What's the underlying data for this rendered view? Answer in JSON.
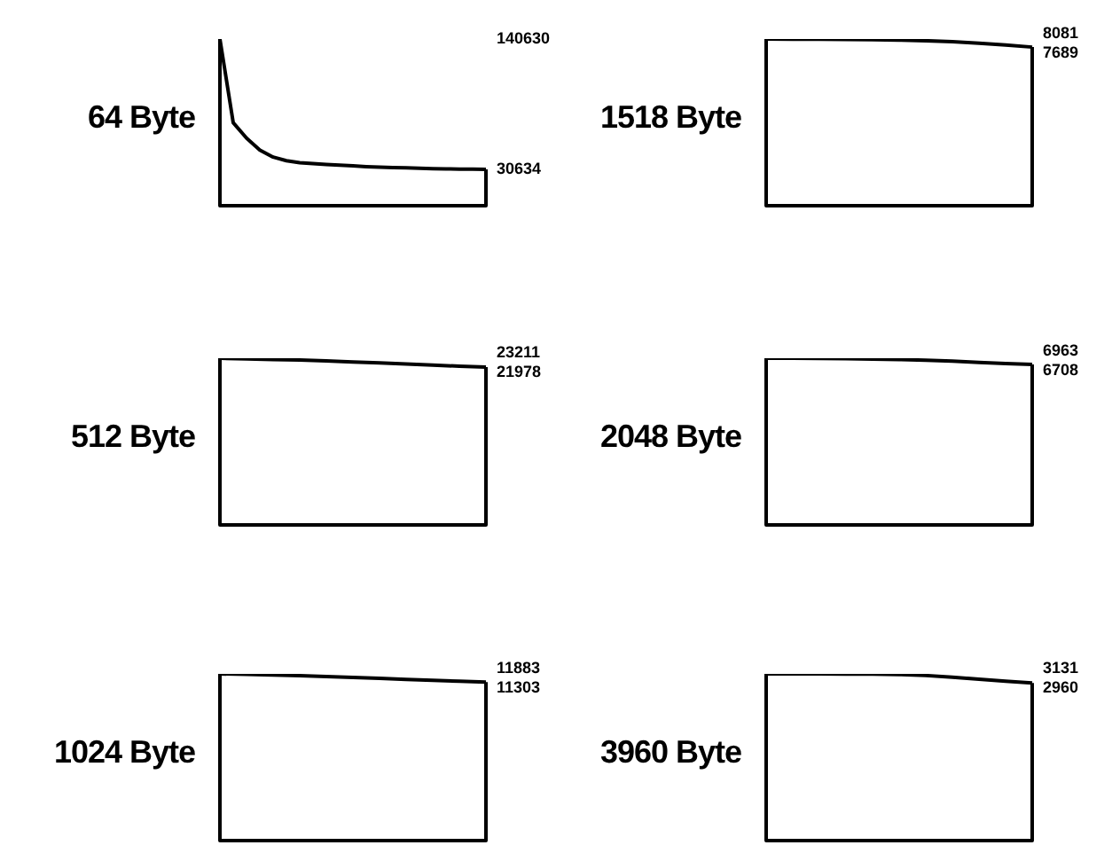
{
  "chart_data": [
    {
      "type": "line",
      "title": "64 Byte",
      "categories": [
        null,
        null,
        null,
        null,
        null,
        null,
        null,
        null,
        null,
        null,
        null,
        null,
        null,
        null,
        null,
        null,
        null,
        null,
        null,
        null,
        null
      ],
      "series": [
        {
          "color": "#000000",
          "values": [
            140630,
            70000,
            57000,
            47000,
            41000,
            38000,
            36300,
            35500,
            34800,
            34200,
            33600,
            33000,
            32600,
            32200,
            31900,
            31600,
            31300,
            31100,
            30900,
            30800,
            30634
          ]
        }
      ],
      "ylim": [
        0,
        140630
      ],
      "yticks": [
        30634,
        140630
      ],
      "tick_labels": "y",
      "marker": "none"
    },
    {
      "type": "line",
      "title": "1518 Byte",
      "categories": [
        null,
        null,
        null,
        null,
        null,
        null,
        null,
        null,
        null,
        null,
        null
      ],
      "series": [
        {
          "color": "#000000",
          "values": [
            8081,
            8075,
            8068,
            8060,
            8050,
            8030,
            8000,
            7950,
            7880,
            7790,
            7689
          ],
          "value_labels": [
            "8081",
            null,
            null,
            null,
            null,
            null,
            null,
            null,
            null,
            null,
            "7689"
          ]
        }
      ],
      "marker": "none"
    },
    {
      "type": "line",
      "title": "512 Byte",
      "categories": [
        null,
        null,
        null,
        null,
        null,
        null,
        null,
        null,
        null,
        null,
        null
      ],
      "series": [
        {
          "color": "#000000",
          "values": [
            23211,
            23120,
            23030,
            22950,
            22850,
            22700,
            22550,
            22400,
            22250,
            22100,
            21978
          ],
          "value_labels": [
            "23211",
            null,
            null,
            null,
            null,
            null,
            null,
            null,
            null,
            null,
            "21978"
          ]
        }
      ],
      "marker": "none"
    },
    {
      "type": "line",
      "title": "2048 Byte",
      "categories": [
        null,
        null,
        null,
        null,
        null,
        null,
        null,
        null,
        null,
        null,
        null
      ],
      "series": [
        {
          "color": "#000000",
          "values": [
            6963,
            6960,
            6955,
            6945,
            6930,
            6910,
            6880,
            6840,
            6790,
            6740,
            6708
          ],
          "value_labels": [
            "6963",
            null,
            null,
            null,
            null,
            null,
            null,
            null,
            null,
            null,
            "6708"
          ]
        }
      ],
      "marker": "none"
    },
    {
      "type": "line",
      "title": "1024 Byte",
      "categories": [
        null,
        null,
        null,
        null,
        null,
        null,
        null,
        null,
        null,
        null,
        null
      ],
      "series": [
        {
          "color": "#000000",
          "values": [
            11883,
            11850,
            11800,
            11750,
            11690,
            11630,
            11560,
            11490,
            11420,
            11360,
            11303
          ],
          "value_labels": [
            "11883",
            null,
            null,
            null,
            null,
            null,
            null,
            null,
            null,
            null,
            "11303"
          ]
        }
      ],
      "marker": "none"
    },
    {
      "type": "line",
      "title": "3960 Byte",
      "categories": [
        null,
        null,
        null,
        null,
        null,
        null,
        null,
        null,
        null,
        null,
        null
      ],
      "series": [
        {
          "color": "#000000",
          "values": [
            3131,
            3131,
            3130,
            3128,
            3125,
            3120,
            3100,
            3070,
            3030,
            2995,
            2960
          ],
          "value_labels": [
            "3131",
            null,
            null,
            null,
            null,
            null,
            null,
            null,
            null,
            null,
            "2960"
          ]
        }
      ],
      "marker": "none"
    }
  ]
}
